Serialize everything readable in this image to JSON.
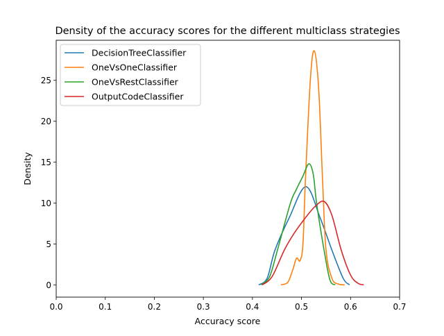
{
  "chart_data": {
    "type": "line",
    "title": "Density of the accuracy scores for the different multiclass strategies",
    "xlabel": "Accuracy score",
    "ylabel": "Density",
    "xlim": [
      0,
      0.7
    ],
    "ylim": [
      -1.5,
      29.9
    ],
    "xticks": [
      "0.0",
      "0.1",
      "0.2",
      "0.3",
      "0.4",
      "0.5",
      "0.6",
      "0.7"
    ],
    "yticks": [
      "0",
      "5",
      "10",
      "15",
      "20",
      "25"
    ],
    "grid": false,
    "legend_position": "top-left",
    "series": [
      {
        "name": "DecisionTreeClassifier",
        "color": "#1f77b4",
        "x": [
          0.413,
          0.43,
          0.446,
          0.475,
          0.509,
          0.538,
          0.562,
          0.585,
          0.598
        ],
        "y": [
          0,
          0.8,
          4.25,
          8.2,
          12,
          8.2,
          4.25,
          0.8,
          0
        ]
      },
      {
        "name": "OneVsOneClassifier",
        "color": "#ff7f0e",
        "x": [
          0.458,
          0.472,
          0.482,
          0.49,
          0.497,
          0.503,
          0.508,
          0.518,
          0.526,
          0.535,
          0.543,
          0.55,
          0.562,
          0.575,
          0.588
        ],
        "y": [
          0,
          0.3,
          1.8,
          3.26,
          2.95,
          5,
          12.75,
          25,
          28.6,
          24,
          12.75,
          4.25,
          0.8,
          0.1,
          0
        ]
      },
      {
        "name": "OneVsRestClassifier",
        "color": "#2ca02c",
        "x": [
          0.418,
          0.435,
          0.451,
          0.477,
          0.489,
          0.503,
          0.515,
          0.524,
          0.531,
          0.546,
          0.558,
          0.569
        ],
        "y": [
          0,
          1,
          4.25,
          9.9,
          11.6,
          13.3,
          14.8,
          13.5,
          9.9,
          4.25,
          0.6,
          0
        ]
      },
      {
        "name": "OutputCodeClassifier",
        "color": "#d62728",
        "x": [
          0.42,
          0.44,
          0.465,
          0.485,
          0.508,
          0.528,
          0.546,
          0.562,
          0.581,
          0.6,
          0.615,
          0.627
        ],
        "y": [
          0,
          1,
          4.25,
          6.3,
          8.2,
          9.6,
          10.2,
          8.5,
          4.25,
          1.2,
          0.2,
          0
        ]
      }
    ]
  }
}
